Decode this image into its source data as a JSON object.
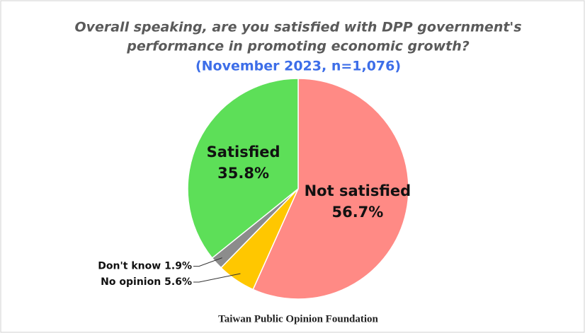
{
  "chart_data": {
    "type": "pie",
    "title": [
      "Overall speaking, are you satisfied with DPP government's",
      "performance in promoting economic growth?"
    ],
    "subtitle": "(November 2023, n=1,076)",
    "source": "Taiwan Public Opinion Foundation",
    "categories": [
      "Not satisfied",
      "No opinion",
      "Don't know",
      "Satisfied"
    ],
    "values": [
      56.7,
      5.6,
      1.9,
      35.8
    ],
    "value_labels": [
      "56.7%",
      "5.6%",
      "1.9%",
      "35.8%"
    ],
    "colors": [
      "#ff8a85",
      "#ffc700",
      "#8c8c8c",
      "#5ddf58"
    ]
  }
}
